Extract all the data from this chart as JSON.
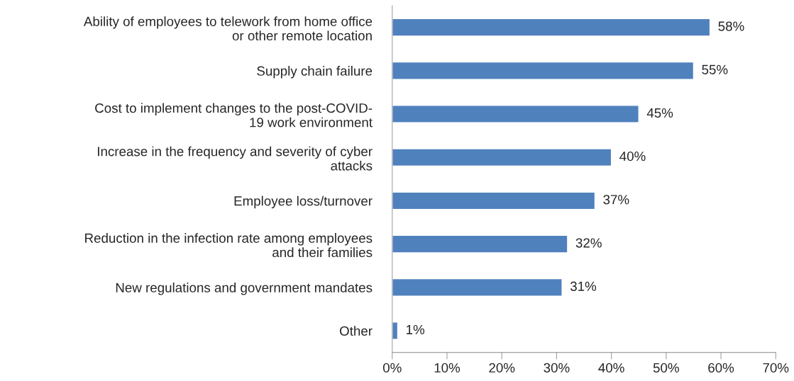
{
  "chart_data": {
    "type": "bar",
    "orientation": "horizontal",
    "categories": [
      "Ability of employees to telework from home office\nor other remote location",
      "Supply chain failure",
      "Cost to implement changes to the post-COVID-\n19 work environment",
      "Increase in the frequency and severity of cyber\nattacks",
      "Employee loss/turnover",
      "Reduction in the infection rate among employees\nand their families",
      "New regulations and government mandates",
      "Other"
    ],
    "values": [
      58,
      55,
      45,
      40,
      37,
      32,
      31,
      1
    ],
    "value_labels": [
      "58%",
      "55%",
      "45%",
      "40%",
      "37%",
      "32%",
      "31%",
      "1%"
    ],
    "color": "#4f81bd",
    "xlim": [
      0,
      70
    ],
    "xticks": [
      {
        "value": 0,
        "label": "0%"
      },
      {
        "value": 10,
        "label": "10%"
      },
      {
        "value": 20,
        "label": "20%"
      },
      {
        "value": 30,
        "label": "30%"
      },
      {
        "value": 40,
        "label": "40%"
      },
      {
        "value": 50,
        "label": "50%"
      },
      {
        "value": 60,
        "label": "60%"
      },
      {
        "value": 70,
        "label": "70%"
      }
    ],
    "grid": false,
    "legend": false
  }
}
